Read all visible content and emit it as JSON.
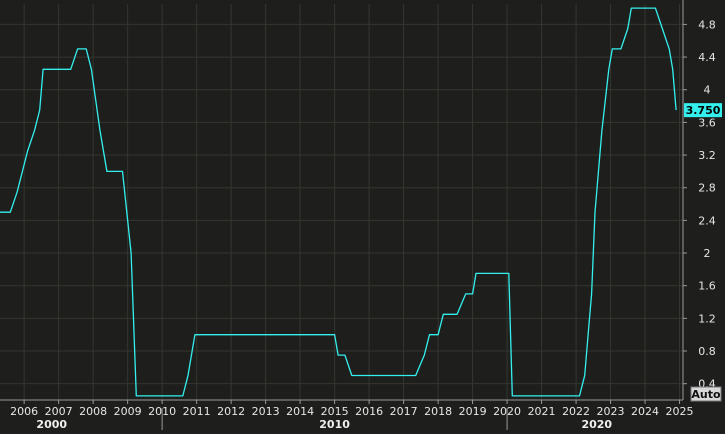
{
  "chart_data": {
    "type": "line",
    "title": "",
    "xlabel": "",
    "ylabel": "",
    "ylim": [
      0.2,
      5.05
    ],
    "xlim": [
      2005.3,
      2025.1
    ],
    "y_ticks": [
      0.4,
      0.8,
      1.2,
      1.6,
      2,
      2.4,
      2.8,
      3.2,
      3.6,
      4,
      4.4,
      4.8
    ],
    "y_tick_labels": [
      "0.4",
      "0.8",
      "1.2",
      "1.6",
      "2",
      "2.4",
      "2.8",
      "3.2",
      "3.6",
      "4",
      "4.4",
      "4.8"
    ],
    "x_ticks": [
      2006,
      2007,
      2008,
      2009,
      2010,
      2011,
      2012,
      2013,
      2014,
      2015,
      2016,
      2017,
      2018,
      2019,
      2020,
      2021,
      2022,
      2023,
      2024,
      2025
    ],
    "x_tick_labels": [
      "2006",
      "2007",
      "2008",
      "2009",
      "2010",
      "2011",
      "2012",
      "2013",
      "2014",
      "2015",
      "2016",
      "2017",
      "2018",
      "2019",
      "2020",
      "2021",
      "2022",
      "2023",
      "2024",
      "2025"
    ],
    "decade_labels": [
      {
        "label": "2000",
        "x": 2006.8
      },
      {
        "label": "2010",
        "x": 2015.0
      },
      {
        "label": "2020",
        "x": 2022.6
      }
    ],
    "decade_dividers": [
      2010.0,
      2020.0
    ],
    "grid": true,
    "y_axis_side": "right",
    "last_value_label": "3.750",
    "auto_button_label": "Auto",
    "line_color": "#33f0ef",
    "series": [
      {
        "x": [
          2005.3,
          2005.6,
          2005.8,
          2005.95,
          2006.1,
          2006.3,
          2006.45,
          2006.55,
          2007.35,
          2007.55,
          2007.8,
          2007.95,
          2008.2,
          2008.4,
          2008.75,
          2008.85,
          2009.1,
          2009.25,
          2010.0,
          2010.6,
          2010.75,
          2010.95,
          2011.0,
          2015.0,
          2015.1,
          2015.3,
          2015.5,
          2017.35,
          2017.6,
          2017.75,
          2018.0,
          2018.15,
          2018.55,
          2018.8,
          2019.0,
          2019.1,
          2019.2,
          2020.05,
          2020.15,
          2021.0,
          2022.1,
          2022.25,
          2022.35,
          2022.45,
          2022.55,
          2022.75,
          2022.95,
          2023.05,
          2023.3,
          2023.5,
          2023.6,
          2024.3,
          2024.5,
          2024.7,
          2024.8,
          2024.9
        ],
        "y": [
          2.5,
          2.5,
          2.75,
          3.0,
          3.25,
          3.5,
          3.75,
          4.25,
          4.25,
          4.5,
          4.5,
          4.25,
          3.5,
          3.0,
          3.0,
          3.0,
          2.0,
          0.25,
          0.25,
          0.25,
          0.5,
          1.0,
          1.0,
          1.0,
          0.75,
          0.75,
          0.5,
          0.5,
          0.75,
          1.0,
          1.0,
          1.25,
          1.25,
          1.5,
          1.5,
          1.75,
          1.75,
          1.75,
          0.25,
          0.25,
          0.25,
          0.5,
          1.0,
          1.5,
          2.5,
          3.5,
          4.25,
          4.5,
          4.5,
          4.75,
          5.0,
          5.0,
          4.75,
          4.5,
          4.25,
          3.75
        ]
      }
    ]
  }
}
